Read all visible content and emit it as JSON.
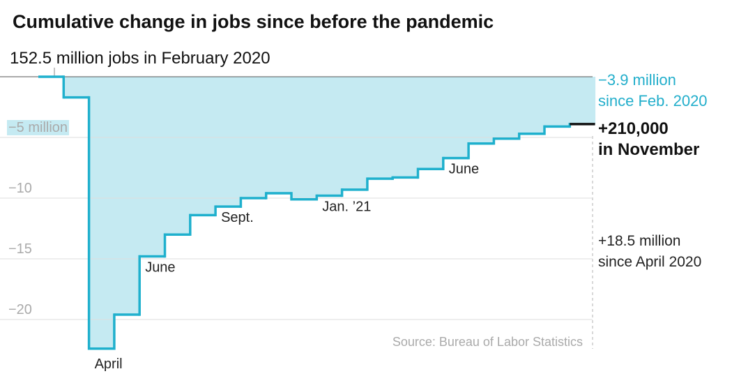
{
  "chart_data": {
    "type": "step",
    "title": "Cumulative change in jobs since before the pandemic",
    "subtitle": "152.5 million jobs in February 2020",
    "categories": [
      null,
      null,
      "April",
      null,
      "June",
      null,
      null,
      "Sept.",
      null,
      null,
      null,
      "Jan. ’21",
      null,
      null,
      null,
      null,
      "June",
      null,
      null,
      null,
      null,
      null
    ],
    "values": [
      0,
      -1.7,
      -22.4,
      -19.6,
      -14.8,
      -13.0,
      -11.4,
      -10.7,
      -10.0,
      -9.6,
      -10.1,
      -9.8,
      -9.3,
      -8.4,
      -8.3,
      -7.6,
      -6.7,
      -5.5,
      -5.1,
      -4.7,
      -4.1,
      -3.9
    ],
    "color": "#1fb0cd",
    "fill_color": "#c5eaf2",
    "highlight_color": "#111111",
    "ylim": [
      -22.5,
      0
    ],
    "yticks": [
      {
        "value": -5,
        "label": "−5 million"
      },
      {
        "value": -10,
        "label": "−10"
      },
      {
        "value": -15,
        "label": "−15"
      },
      {
        "value": -20,
        "label": "−20"
      }
    ],
    "grid": true,
    "annotations": [
      {
        "lines": [
          "−3.9 million",
          "since Feb. 2020"
        ]
      },
      {
        "lines": [
          "+210,000",
          "in November"
        ]
      },
      {
        "lines": [
          "+18.5 million",
          "since April 2020"
        ]
      }
    ],
    "source": "Source: Bureau of Labor Statistics"
  }
}
